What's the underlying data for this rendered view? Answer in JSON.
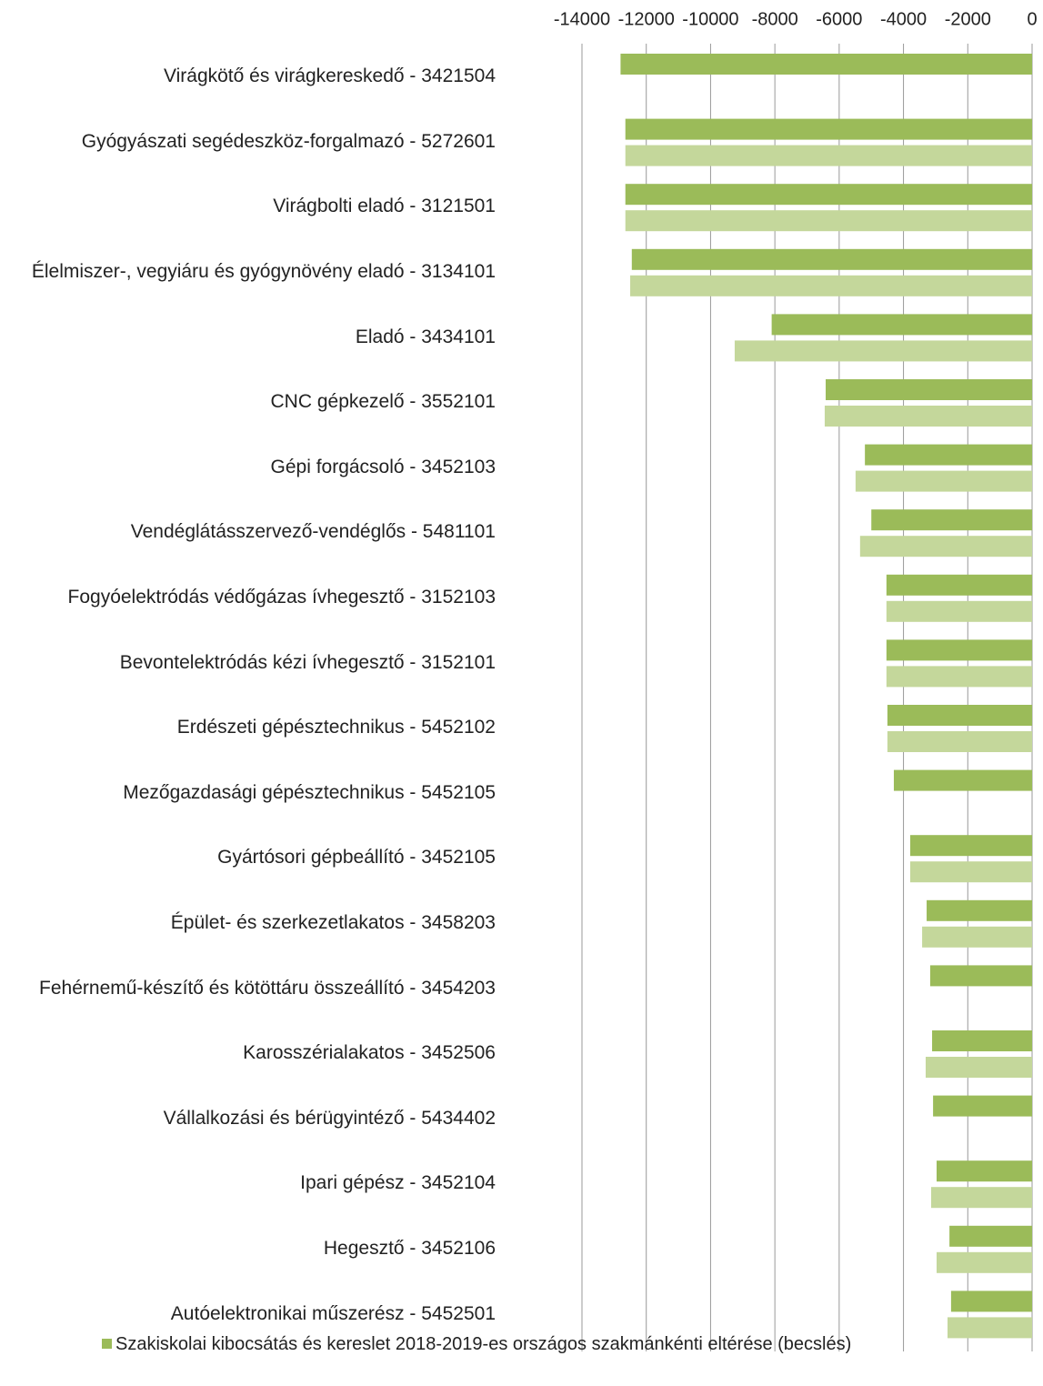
{
  "chart_data": {
    "type": "hbar",
    "categories": [
      "Virágkötő és virágkereskedő - 3421504",
      "Gyógyászati segédeszköz-forgalmazó - 5272601",
      "Virágbolti eladó - 3121501",
      "Élelmiszer-, vegyiáru és gyógynövény eladó - 3134101",
      "Eladó - 3434101",
      "CNC gépkezelő - 3552101",
      "Gépi forgácsoló - 3452103",
      "Vendéglátásszervező-vendéglős - 5481101",
      "Fogyóelektródás védőgázas ívhegesztő - 3152103",
      "Bevontelektródás kézi ívhegesztő - 3152101",
      "Erdészeti gépésztechnikus - 5452102",
      "Mezőgazdasági gépésztechnikus - 5452105",
      "Gyártósori gépbeállító - 3452105",
      "Épület- és szerkezetlakatos - 3458203",
      "Fehérnemű-készítő és kötöttáru összeállító - 3454203",
      "Karosszérialakatos - 3452506",
      "Vállalkozási és bérügyintéző - 5434402",
      "Ipari gépész - 3452104",
      "Hegesztő - 3452106",
      "Autóelektronikai műszerész - 5452501"
    ],
    "series": [
      {
        "name": "Szakiskolai kibocsátás és kereslet 2018-2019-es országos szakmánkénti eltérése (becslés)",
        "color": "#9bbb59",
        "values": [
          -12800,
          -12650,
          -12650,
          -12450,
          -8100,
          -6420,
          -5200,
          -5000,
          -4530,
          -4530,
          -4500,
          -4300,
          -3790,
          -3280,
          -3170,
          -3110,
          -3080,
          -2970,
          -2570,
          -2520
        ]
      },
      {
        "color": "#c4d79b",
        "values": [
          null,
          -12650,
          -12650,
          -12500,
          -9250,
          -6450,
          -5490,
          -5350,
          -4530,
          -4530,
          -4500,
          null,
          -3790,
          -3420,
          null,
          -3310,
          null,
          -3140,
          -2970,
          -2630
        ]
      }
    ],
    "xlim": [
      -14000,
      0
    ],
    "xticks": [
      -14000,
      -12000,
      -10000,
      -8000,
      -6000,
      -4000,
      -2000,
      0
    ],
    "grid": true
  }
}
